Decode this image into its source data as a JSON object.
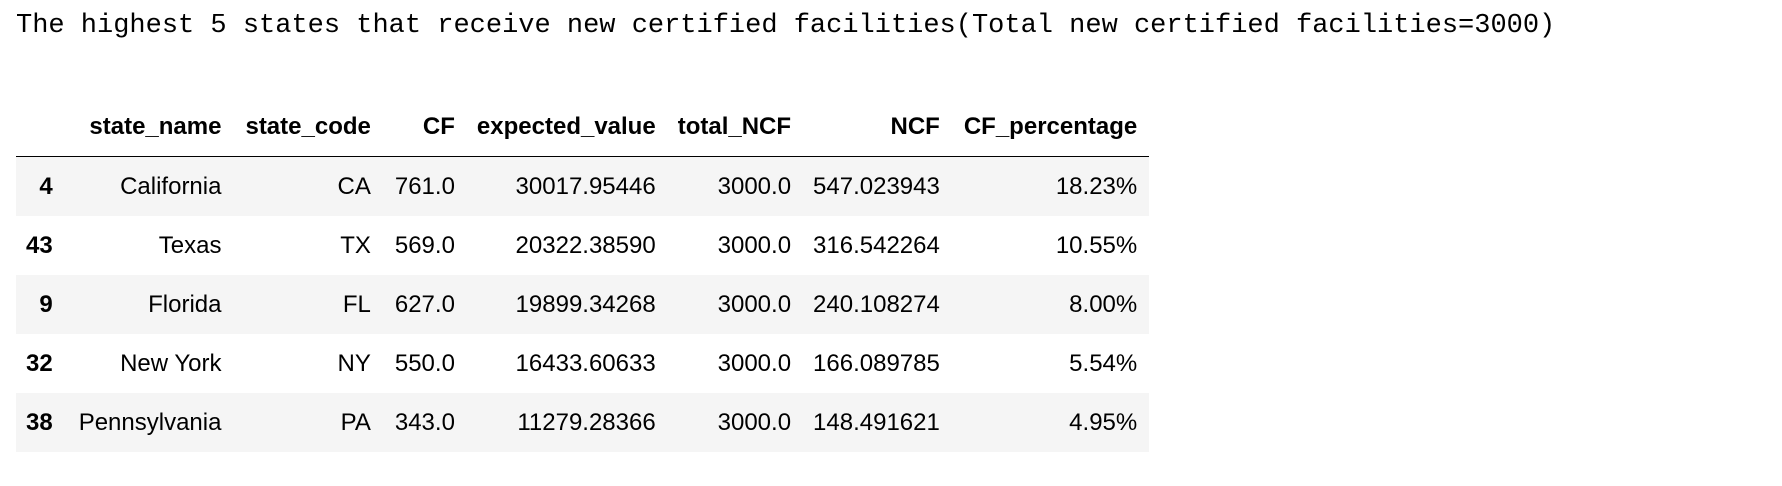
{
  "caption": "The highest 5 states that receive new certified facilities(Total new certified facilities=3000)",
  "table": {
    "index_header": "",
    "columns": [
      "state_name",
      "state_code",
      "CF",
      "expected_value",
      "total_NCF",
      "NCF",
      "CF_percentage"
    ],
    "rows": [
      {
        "index": "4",
        "cells": [
          "California",
          "CA",
          "761.0",
          "30017.95446",
          "3000.0",
          "547.023943",
          "18.23%"
        ]
      },
      {
        "index": "43",
        "cells": [
          "Texas",
          "TX",
          "569.0",
          "20322.38590",
          "3000.0",
          "316.542264",
          "10.55%"
        ]
      },
      {
        "index": "9",
        "cells": [
          "Florida",
          "FL",
          "627.0",
          "19899.34268",
          "3000.0",
          "240.108274",
          "8.00%"
        ]
      },
      {
        "index": "32",
        "cells": [
          "New York",
          "NY",
          "550.0",
          "16433.60633",
          "3000.0",
          "166.089785",
          "5.54%"
        ]
      },
      {
        "index": "38",
        "cells": [
          "Pennsylvania",
          "PA",
          "343.0",
          "11279.28366",
          "3000.0",
          "148.491621",
          "4.95%"
        ]
      }
    ]
  }
}
